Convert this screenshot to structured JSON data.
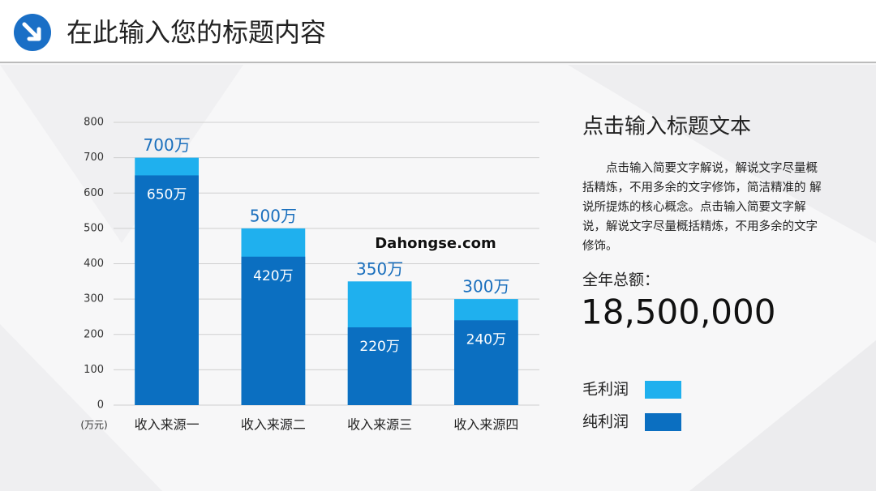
{
  "header": {
    "title": "在此输入您的标题内容"
  },
  "chart_data": {
    "type": "bar",
    "overlap": true,
    "unit_label": "(万元)",
    "categories": [
      "收入来源一",
      "收入来源二",
      "收入来源三",
      "收入来源四"
    ],
    "series": [
      {
        "name": "毛利润",
        "color": "#1fb0ee",
        "values": [
          700,
          500,
          350,
          300
        ],
        "value_labels": [
          "700万",
          "500万",
          "350万",
          "300万"
        ],
        "label_color": "#1a6fbd",
        "label_position": "above"
      },
      {
        "name": "纯利润",
        "color": "#0b6fc1",
        "values": [
          650,
          420,
          220,
          240
        ],
        "value_labels": [
          "650万",
          "420万",
          "220万",
          "240万"
        ],
        "label_color": "#ffffff",
        "label_position": "inside"
      }
    ],
    "ylim": [
      0,
      800
    ],
    "yticks": [
      0,
      100,
      200,
      300,
      400,
      500,
      600,
      700,
      800
    ],
    "grid": true
  },
  "side": {
    "heading": "点击输入标题文本",
    "paragraph": "点击输入简要文字解说，解说文字尽量概括精炼，不用多余的文字修饰，简洁精准的 解说所提炼的核心概念。点击输入简要文字解说，解说文字尽量概括精炼，不用多余的文字修饰。",
    "total_label": "全年总额：",
    "total": "18,500,000"
  },
  "watermark": "Dahongse.com"
}
